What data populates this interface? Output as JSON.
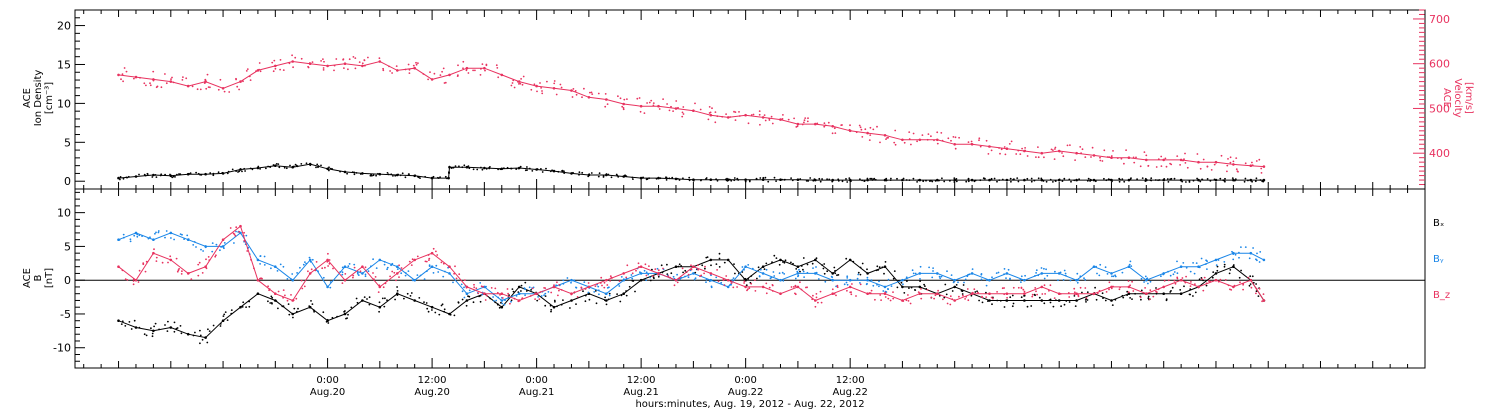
{
  "colors": {
    "black": "#000000",
    "magenta": "#e8325f",
    "blue": "#1a86e8"
  },
  "chart_data": [
    {
      "type": "scatter",
      "panel": "top",
      "ylabel_lines": [
        "ACE",
        "Ion Density",
        "[cm⁻³]"
      ],
      "ylim": [
        -1,
        22
      ],
      "yticks": [
        0,
        5,
        10,
        15,
        20
      ],
      "y2label_lines": [
        "ACE",
        "Velocity",
        "[km/s]"
      ],
      "y2lim": [
        320,
        720
      ],
      "y2ticks": [
        400,
        500,
        600,
        700
      ],
      "series": [
        {
          "axis": "left",
          "color": "#000000",
          "x": [
            0,
            2,
            4,
            6,
            8,
            10,
            12,
            14,
            16,
            18,
            20,
            22,
            24,
            26,
            28,
            30,
            32,
            34,
            36,
            37.9,
            38,
            40,
            42,
            44,
            46,
            48,
            50,
            52,
            54,
            56,
            58,
            60,
            62,
            64,
            66,
            68,
            70,
            72,
            74,
            76,
            78,
            80,
            82,
            84,
            86,
            88,
            90,
            92,
            94,
            96,
            98,
            100,
            102,
            104,
            106,
            108,
            110,
            112,
            114,
            116,
            118,
            120,
            122,
            124,
            126,
            128,
            130,
            131.5
          ],
          "y": [
            0.4,
            0.6,
            0.8,
            0.7,
            0.9,
            0.9,
            1.0,
            1.5,
            1.7,
            2.0,
            1.8,
            2.2,
            1.6,
            1.2,
            1.0,
            0.9,
            0.8,
            0.7,
            0.4,
            0.4,
            1.8,
            1.8,
            1.7,
            1.6,
            1.7,
            1.5,
            1.3,
            1.0,
            0.8,
            0.8,
            0.6,
            0.4,
            0.4,
            0.3,
            0.2,
            0.2,
            0.2,
            0.2,
            0.2,
            0.2,
            0.2,
            0.15,
            0.15,
            0.15,
            0.15,
            0.15,
            0.15,
            0.15,
            0.15,
            0.15,
            0.15,
            0.15,
            0.15,
            0.15,
            0.15,
            0.15,
            0.15,
            0.15,
            0.15,
            0.15,
            0.15,
            0.15,
            0.15,
            0.15,
            0.15,
            0.15,
            0.15,
            0.15
          ]
        },
        {
          "axis": "right",
          "color": "#e8325f",
          "x": [
            0,
            2,
            4,
            6,
            8,
            10,
            12,
            14,
            16,
            18,
            20,
            22,
            24,
            26,
            28,
            30,
            32,
            34,
            36,
            38,
            40,
            42,
            44,
            46,
            48,
            50,
            52,
            54,
            56,
            58,
            60,
            62,
            64,
            66,
            68,
            70,
            72,
            74,
            76,
            78,
            80,
            82,
            84,
            86,
            88,
            90,
            92,
            94,
            96,
            98,
            100,
            102,
            104,
            106,
            108,
            110,
            112,
            114,
            116,
            118,
            120,
            122,
            124,
            126,
            128,
            130,
            131.5
          ],
          "y": [
            575,
            570,
            565,
            560,
            550,
            560,
            545,
            560,
            585,
            595,
            605,
            600,
            595,
            600,
            595,
            605,
            585,
            590,
            565,
            575,
            590,
            590,
            575,
            560,
            550,
            545,
            540,
            525,
            520,
            510,
            505,
            505,
            500,
            495,
            485,
            480,
            485,
            480,
            475,
            465,
            465,
            460,
            450,
            445,
            440,
            430,
            430,
            430,
            420,
            420,
            415,
            410,
            405,
            400,
            405,
            400,
            395,
            390,
            390,
            385,
            385,
            385,
            380,
            380,
            375,
            372,
            370
          ]
        }
      ]
    },
    {
      "type": "scatter",
      "panel": "bottom",
      "ylabel_lines": [
        "ACE",
        "B",
        "[nT]"
      ],
      "ylim": [
        -13,
        13.5
      ],
      "yticks": [
        -10,
        -5,
        0,
        5,
        10
      ],
      "zero_line": true,
      "legend": [
        "Bₓ",
        "Bᵧ",
        "B_z"
      ],
      "series": [
        {
          "name": "Bₓ",
          "color": "#000000",
          "x": [
            0,
            2,
            4,
            6,
            8,
            10,
            12,
            14,
            16,
            18,
            20,
            22,
            24,
            26,
            28,
            30,
            32,
            34,
            36,
            38,
            40,
            42,
            44,
            46,
            48,
            50,
            52,
            54,
            56,
            58,
            60,
            62,
            64,
            66,
            68,
            70,
            72,
            74,
            76,
            78,
            80,
            82,
            84,
            86,
            88,
            90,
            92,
            94,
            96,
            98,
            100,
            102,
            104,
            106,
            108,
            110,
            112,
            114,
            116,
            118,
            120,
            122,
            124,
            126,
            128,
            130,
            131.5
          ],
          "y": [
            -6,
            -7,
            -7.5,
            -7,
            -8,
            -8.5,
            -6,
            -4,
            -2,
            -3,
            -5,
            -4,
            -6,
            -5,
            -3,
            -4,
            -2,
            -3,
            -4,
            -5,
            -3,
            -2,
            -4,
            -1,
            -2,
            -4,
            -3,
            -2,
            -3,
            -2,
            0,
            1,
            2,
            2,
            3,
            3,
            0,
            2,
            3,
            2,
            3,
            1,
            3,
            1,
            2,
            -1,
            -1,
            -2,
            -1,
            -2,
            -3,
            -3,
            -3,
            -3,
            -3,
            -3,
            -2,
            -3,
            -2,
            -2,
            -2,
            -2,
            -1,
            1,
            2,
            0,
            -3
          ]
        },
        {
          "name": "Bᵧ",
          "color": "#1a86e8",
          "x": [
            0,
            2,
            4,
            6,
            8,
            10,
            12,
            14,
            16,
            18,
            20,
            22,
            24,
            26,
            28,
            30,
            32,
            34,
            36,
            38,
            40,
            42,
            44,
            46,
            48,
            50,
            52,
            54,
            56,
            58,
            60,
            62,
            64,
            66,
            68,
            70,
            72,
            74,
            76,
            78,
            80,
            82,
            84,
            86,
            88,
            90,
            92,
            94,
            96,
            98,
            100,
            102,
            104,
            106,
            108,
            110,
            112,
            114,
            116,
            118,
            120,
            122,
            124,
            126,
            128,
            130,
            131.5
          ],
          "y": [
            6,
            7,
            6,
            7,
            6,
            5,
            5,
            7,
            3,
            2,
            0,
            3,
            -1,
            2,
            1,
            3,
            2,
            0,
            2,
            1,
            -2,
            -1,
            -3,
            -2,
            -2,
            -1,
            0,
            -1,
            -2,
            0,
            1,
            1,
            0,
            1,
            0,
            -1,
            2,
            1,
            0,
            1,
            1,
            0,
            0,
            0,
            -1,
            0,
            1,
            1,
            0,
            1,
            0,
            1,
            0,
            1,
            1,
            0,
            2,
            1,
            2,
            0,
            1,
            2,
            2,
            3,
            4,
            4,
            3
          ]
        },
        {
          "name": "B_z",
          "color": "#e8325f",
          "x": [
            0,
            2,
            4,
            6,
            8,
            10,
            12,
            14,
            16,
            18,
            20,
            22,
            24,
            26,
            28,
            30,
            32,
            34,
            36,
            38,
            40,
            42,
            44,
            46,
            48,
            50,
            52,
            54,
            56,
            58,
            60,
            62,
            64,
            66,
            68,
            70,
            72,
            74,
            76,
            78,
            80,
            82,
            84,
            86,
            88,
            90,
            92,
            94,
            96,
            98,
            100,
            102,
            104,
            106,
            108,
            110,
            112,
            114,
            116,
            118,
            120,
            122,
            124,
            126,
            128,
            130,
            131.5
          ],
          "y": [
            2,
            0,
            4,
            3,
            1,
            2,
            6,
            8,
            0,
            -2,
            -3,
            1,
            3,
            0,
            2,
            -1,
            1,
            3,
            4,
            2,
            -1,
            -2,
            -2,
            -3,
            -2,
            -1,
            -2,
            -1,
            0,
            1,
            2,
            1,
            0,
            2,
            1,
            0,
            -1,
            -1,
            -2,
            -1,
            -3,
            -2,
            -1,
            -2,
            -2,
            -3,
            -2,
            -2,
            -3,
            -2,
            -2,
            -2,
            -2,
            -1,
            -2,
            -2,
            -2,
            -1,
            -1,
            -2,
            -1,
            0,
            -1,
            0,
            -1,
            0,
            -3
          ]
        }
      ]
    }
  ],
  "x_axis": {
    "xlim": [
      -5,
      150
    ],
    "major_ticks": [
      {
        "x": 24,
        "time": "0:00",
        "date": "Aug.20"
      },
      {
        "x": 36,
        "time": "12:00",
        "date": "Aug.20"
      },
      {
        "x": 48,
        "time": "0:00",
        "date": "Aug.21"
      },
      {
        "x": 60,
        "time": "12:00",
        "date": "Aug.21"
      },
      {
        "x": 72,
        "time": "0:00",
        "date": "Aug.22"
      },
      {
        "x": 84,
        "time": "12:00",
        "date": "Aug.22"
      }
    ],
    "xlabel": "hours:minutes, Aug. 19, 2012 - Aug. 22, 2012"
  }
}
